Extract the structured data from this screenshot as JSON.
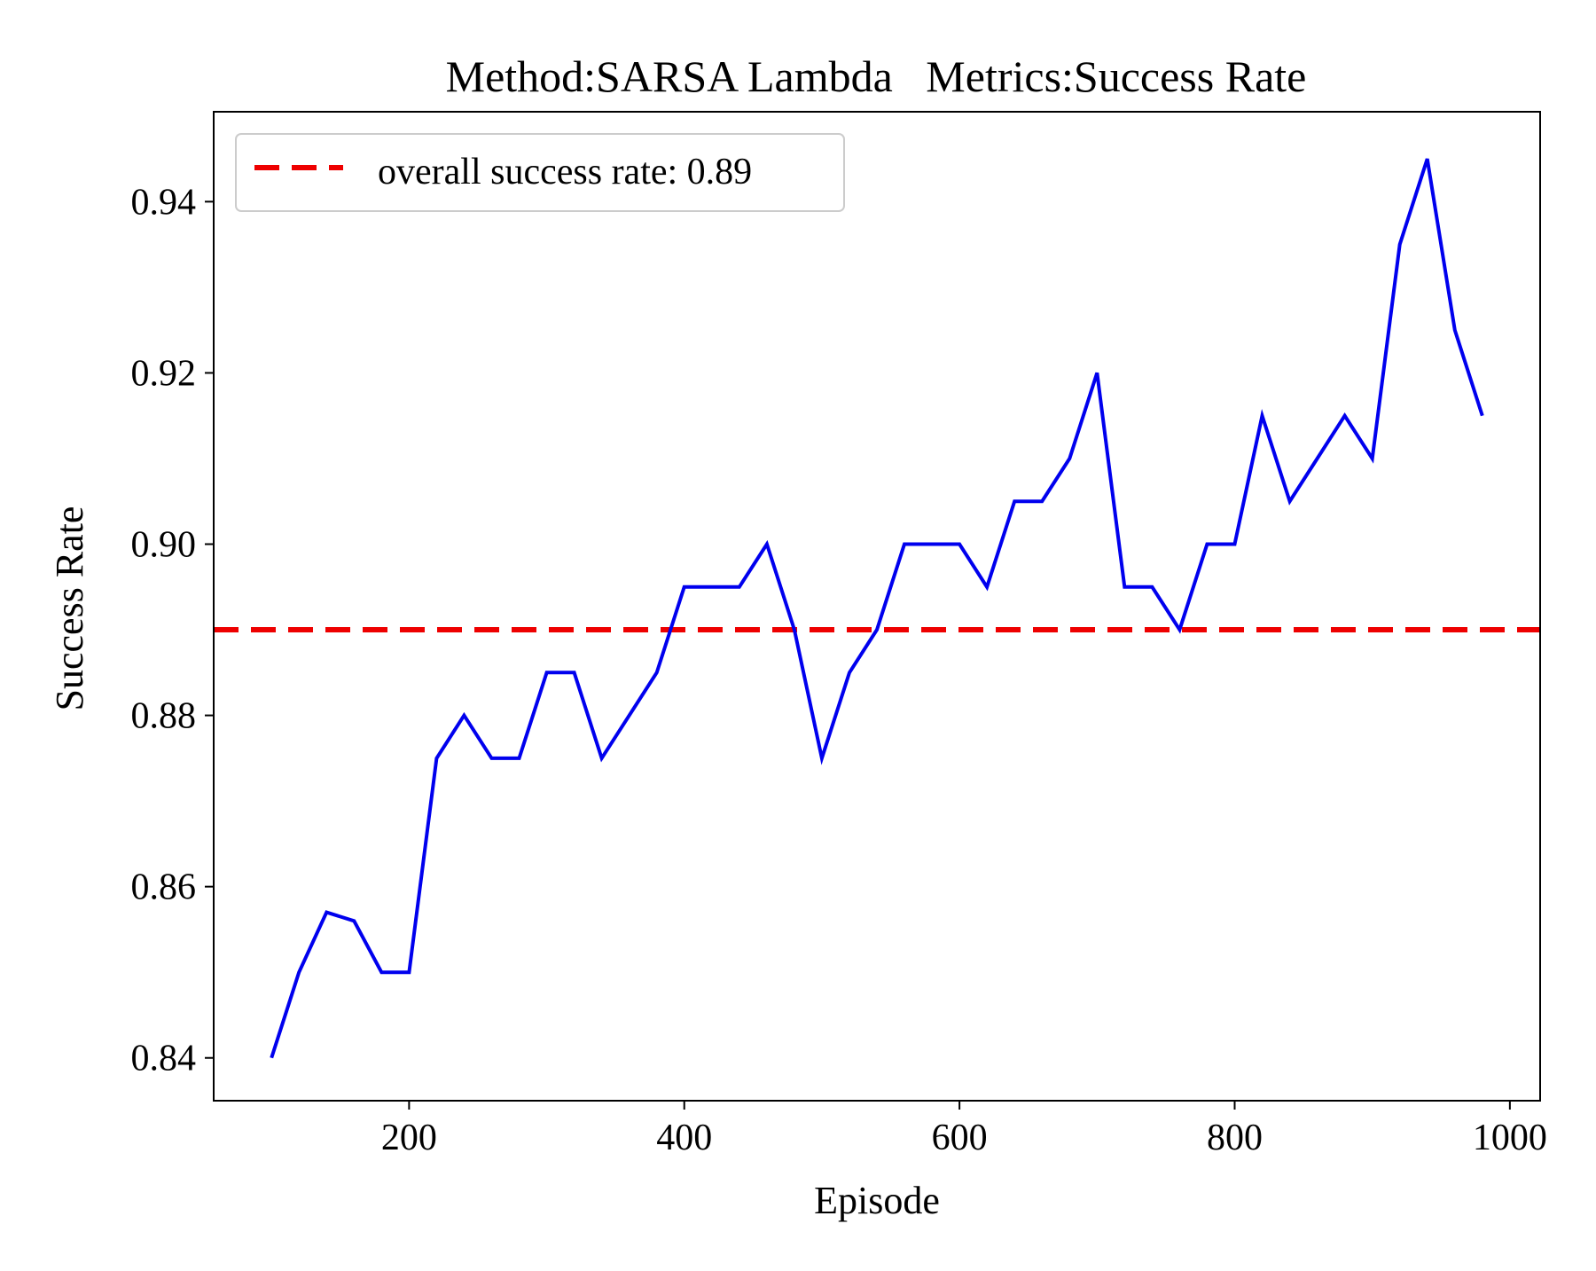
{
  "chart_data": {
    "type": "line",
    "title": "Method:SARSA Lambda   Metrics:Success Rate",
    "xlabel": "Episode",
    "ylabel": "Success Rate",
    "xlim": [
      58,
      1022
    ],
    "ylim": [
      0.835,
      0.9505
    ],
    "x_ticks": [
      200,
      400,
      600,
      800,
      1000
    ],
    "x_tick_labels": [
      "200",
      "400",
      "600",
      "800",
      "1000"
    ],
    "y_ticks": [
      0.84,
      0.86,
      0.88,
      0.9,
      0.92,
      0.94
    ],
    "y_tick_labels": [
      "0.84",
      "0.86",
      "0.88",
      "0.90",
      "0.92",
      "0.94"
    ],
    "grid": false,
    "legend_position": "upper-left",
    "series": [
      {
        "kind": "line",
        "color": "#0000ee",
        "x": [
          100,
          120,
          140,
          160,
          180,
          200,
          220,
          240,
          260,
          280,
          300,
          320,
          340,
          360,
          380,
          400,
          420,
          440,
          460,
          480,
          500,
          520,
          540,
          560,
          580,
          600,
          620,
          640,
          660,
          680,
          700,
          720,
          740,
          760,
          780,
          800,
          820,
          840,
          860,
          880,
          900,
          920,
          940,
          960,
          980
        ],
        "values": [
          0.84,
          0.85,
          0.857,
          0.856,
          0.85,
          0.85,
          0.875,
          0.88,
          0.875,
          0.875,
          0.885,
          0.885,
          0.875,
          0.88,
          0.885,
          0.895,
          0.895,
          0.895,
          0.9,
          0.89,
          0.875,
          0.885,
          0.89,
          0.9,
          0.9,
          0.9,
          0.895,
          0.905,
          0.905,
          0.91,
          0.92,
          0.895,
          0.895,
          0.89,
          0.9,
          0.9,
          0.915,
          0.905,
          0.91,
          0.915,
          0.91,
          0.935,
          0.945,
          0.925,
          0.915
        ]
      },
      {
        "kind": "hline",
        "name": "overall success rate: 0.89",
        "color": "#ee0000",
        "y": 0.89,
        "style": "dashed"
      }
    ]
  }
}
